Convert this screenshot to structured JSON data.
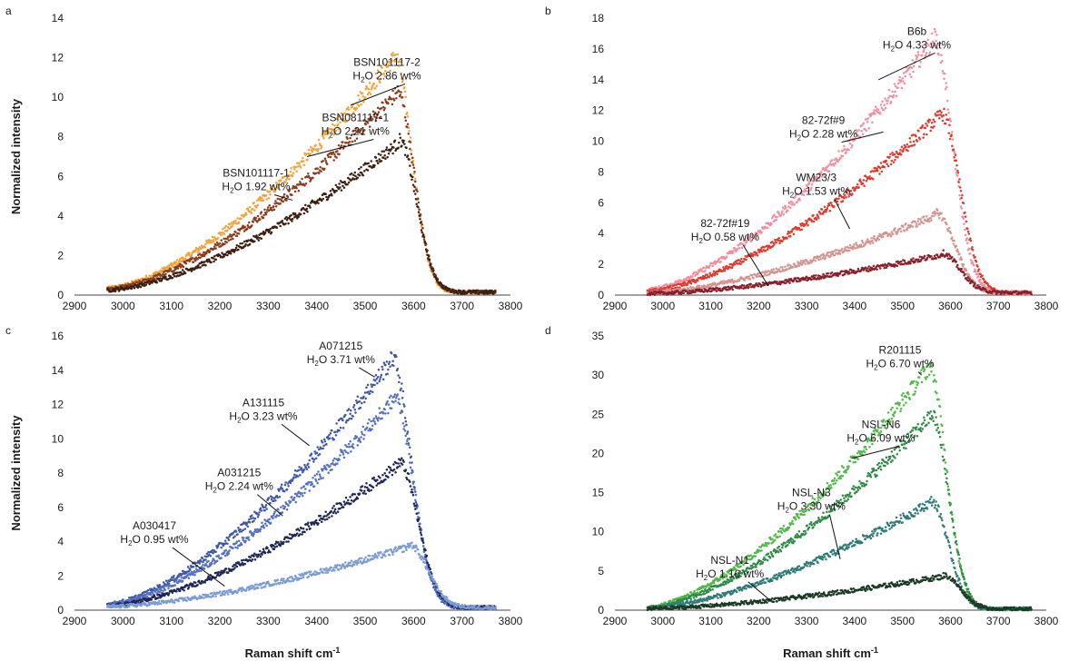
{
  "chart_data": [
    {
      "panel": "a",
      "type": "scatter",
      "xlabel": "",
      "ylabel": "Normalized intensity",
      "xlim": [
        2900,
        3800
      ],
      "ylim": [
        0,
        14
      ],
      "xticks": [
        2900,
        3000,
        3100,
        3200,
        3300,
        3400,
        3500,
        3600,
        3700,
        3800
      ],
      "yticks": [
        0,
        2,
        4,
        6,
        8,
        10,
        12,
        14
      ],
      "series": [
        {
          "name": "BSN101117-2",
          "water": "2.86",
          "color": "#f2a33a",
          "peak": 12.0,
          "startVal": 0.35,
          "peakX": 3560,
          "endX": 3770,
          "tailDecay": 50,
          "annot": {
            "x": 3545,
            "y": 11.5,
            "tx": 3470,
            "ty": 9.6
          }
        },
        {
          "name": "BSN081117-1",
          "water": "2.21",
          "color": "#8b3a1a",
          "peak": 10.2,
          "startVal": 0.3,
          "peakX": 3565,
          "endX": 3770,
          "tailDecay": 50,
          "annot": {
            "x": 3480,
            "y": 8.7,
            "tx": 3380,
            "ty": 7.0
          }
        },
        {
          "name": "BSN101117-1",
          "water": "1.92",
          "color": "#3d1f10",
          "peak": 7.7,
          "startVal": 0.25,
          "peakX": 3570,
          "endX": 3770,
          "tailDecay": 50,
          "annot": {
            "x": 3275,
            "y": 5.9,
            "tx": 3350,
            "ty": 4.8
          }
        }
      ]
    },
    {
      "panel": "b",
      "type": "scatter",
      "xlabel": "",
      "ylabel": "",
      "xlim": [
        2900,
        3800
      ],
      "ylim": [
        0,
        18
      ],
      "xticks": [
        2900,
        3000,
        3100,
        3200,
        3300,
        3400,
        3500,
        3600,
        3700,
        3800
      ],
      "yticks": [
        0,
        2,
        4,
        6,
        8,
        10,
        12,
        14,
        16,
        18
      ],
      "series": [
        {
          "name": "B6b",
          "water": "4.33",
          "color": "#f08ea0",
          "peak": 16.6,
          "startVal": 0.35,
          "peakX": 3565,
          "endX": 3770,
          "tailDecay": 55,
          "annot": {
            "x": 3530,
            "y": 16.8,
            "tx": 3450,
            "ty": 14.0
          }
        },
        {
          "name": "82-72f#9",
          "water": "2.28",
          "color": "#e0382a",
          "peak": 11.7,
          "startVal": 0.25,
          "peakX": 3580,
          "endX": 3770,
          "tailDecay": 55,
          "annot": {
            "x": 3335,
            "y": 11.0,
            "tx": 3460,
            "ty": 10.6
          }
        },
        {
          "name": "WM23/3",
          "water": "1.53",
          "color": "#d49490",
          "peak": 5.2,
          "startVal": 0.15,
          "peakX": 3570,
          "endX": 3770,
          "tailDecay": 55,
          "annot": {
            "x": 3320,
            "y": 7.3,
            "tx": 3390,
            "ty": 4.3
          }
        },
        {
          "name": "82-72f#19",
          "water": "0.58",
          "color": "#8b1e2b",
          "peak": 2.6,
          "startVal": 0.1,
          "peakX": 3580,
          "endX": 3770,
          "tailDecay": 55,
          "annot": {
            "x": 3130,
            "y": 4.3,
            "tx": 3220,
            "ty": 0.6
          }
        }
      ]
    },
    {
      "panel": "c",
      "type": "scatter",
      "xlabel": "Raman shift cm-1",
      "ylabel": "Normalized intensity",
      "xlim": [
        2900,
        3800
      ],
      "ylim": [
        0,
        16
      ],
      "xticks": [
        2900,
        3000,
        3100,
        3200,
        3300,
        3400,
        3500,
        3600,
        3700,
        3800
      ],
      "yticks": [
        0,
        2,
        4,
        6,
        8,
        10,
        12,
        14,
        16
      ],
      "series": [
        {
          "name": "A071215",
          "water": "3.71",
          "color": "#3d56a8",
          "peak": 14.6,
          "startVal": 0.35,
          "peakX": 3555,
          "endX": 3770,
          "tailDecay": 55,
          "annot": {
            "x": 3450,
            "y": 15.1,
            "tx": 3520,
            "ty": 13.6
          }
        },
        {
          "name": "A131115",
          "water": "3.23",
          "color": "#5470c0",
          "peak": 12.3,
          "startVal": 0.3,
          "peakX": 3560,
          "endX": 3770,
          "tailDecay": 55,
          "annot": {
            "x": 3290,
            "y": 11.8,
            "tx": 3385,
            "ty": 9.6
          }
        },
        {
          "name": "A031215",
          "water": "2.24",
          "color": "#1e2656",
          "peak": 8.5,
          "startVal": 0.25,
          "peakX": 3570,
          "endX": 3770,
          "tailDecay": 55,
          "annot": {
            "x": 3240,
            "y": 7.7,
            "tx": 3330,
            "ty": 5.5
          }
        },
        {
          "name": "A030417",
          "water": "0.95",
          "color": "#7a9cd6",
          "peak": 3.7,
          "startVal": 0.2,
          "peakX": 3590,
          "endX": 3770,
          "tailDecay": 55,
          "annot": {
            "x": 3065,
            "y": 4.6,
            "tx": 3210,
            "ty": 1.4
          }
        }
      ]
    },
    {
      "panel": "d",
      "type": "scatter",
      "xlabel": "Raman shift cm-1",
      "ylabel": "",
      "xlim": [
        2900,
        3800
      ],
      "ylim": [
        0,
        35
      ],
      "xticks": [
        2900,
        3000,
        3100,
        3200,
        3300,
        3400,
        3500,
        3600,
        3700,
        3800
      ],
      "yticks": [
        0,
        5,
        10,
        15,
        20,
        25,
        30,
        35
      ],
      "series": [
        {
          "name": "R201115",
          "water": "6.70",
          "color": "#4fb848",
          "peak": 31.0,
          "startVal": 0.35,
          "peakX": 3555,
          "endX": 3770,
          "tailDecay": 50,
          "annot": {
            "x": 3495,
            "y": 32.5,
            "tx": 3540,
            "ty": 30.0
          }
        },
        {
          "name": "NSL-N6",
          "water": "6.09",
          "color": "#2e8a45",
          "peak": 24.8,
          "startVal": 0.3,
          "peakX": 3560,
          "endX": 3770,
          "tailDecay": 50,
          "annot": {
            "x": 3455,
            "y": 23.0,
            "tx": 3395,
            "ty": 19.4
          }
        },
        {
          "name": "NSL-N3",
          "water": "3.30",
          "color": "#2e7a78",
          "peak": 13.8,
          "startVal": 0.25,
          "peakX": 3560,
          "endX": 3770,
          "tailDecay": 50,
          "annot": {
            "x": 3310,
            "y": 14.3,
            "tx": 3370,
            "ty": 6.5
          }
        },
        {
          "name": "NSL-N1",
          "water": "1.16",
          "color": "#1a3a24",
          "peak": 4.3,
          "startVal": 0.2,
          "peakX": 3585,
          "endX": 3770,
          "tailDecay": 50,
          "annot": {
            "x": 3140,
            "y": 5.7,
            "tx": 3225,
            "ty": 1.2
          }
        }
      ]
    }
  ]
}
